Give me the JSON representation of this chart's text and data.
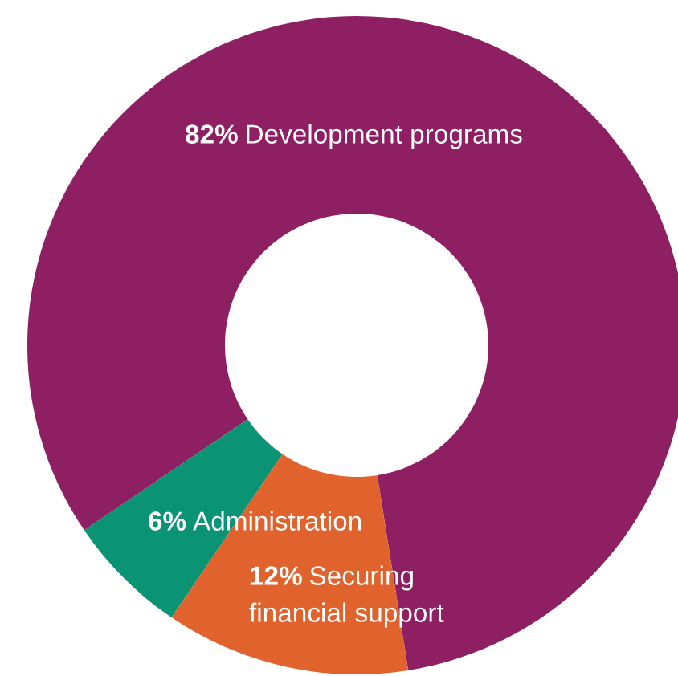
{
  "chart_data": {
    "type": "donut",
    "categories": [
      "Development programs",
      "Administration",
      "Securing financial support"
    ],
    "values": [
      82,
      6,
      12
    ],
    "colors": [
      "#8e1f63",
      "#0b9474",
      "#e0622c"
    ],
    "value_labels": [
      "82%",
      "6%",
      "12%"
    ]
  }
}
